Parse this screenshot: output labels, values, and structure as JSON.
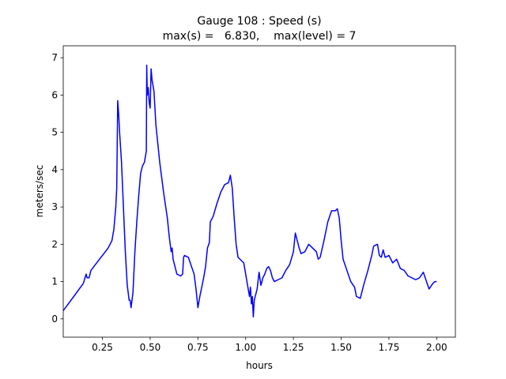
{
  "chart_data": {
    "type": "line",
    "title": "Gauge 108 : Speed (s)",
    "subtitle": "max(s) =   6.830,    max(level) = 7",
    "x_label": "hours",
    "y_label": "meters/sec",
    "color": "#0000ff",
    "xlim": [
      0.045,
      2.098
    ],
    "ylim": [
      -0.49,
      7.32
    ],
    "xticks": [
      0.25,
      {
        "value": 0.5,
        "label": "0.50"
      },
      0.75,
      {
        "value": 1.0,
        "label": "1.00"
      },
      1.25,
      {
        "value": 1.5,
        "label": "1.50"
      },
      1.75,
      {
        "value": 2.0,
        "label": "2.00"
      }
    ],
    "yticks": [
      0,
      1,
      2,
      3,
      4,
      5,
      6,
      7
    ],
    "x": [
      0.045,
      0.1,
      0.15,
      0.165,
      0.17,
      0.18,
      0.19,
      0.22,
      0.25,
      0.28,
      0.3,
      0.31,
      0.32,
      0.325,
      0.33,
      0.335,
      0.34,
      0.35,
      0.36,
      0.37,
      0.38,
      0.39,
      0.395,
      0.4,
      0.41,
      0.42,
      0.43,
      0.44,
      0.45,
      0.46,
      0.47,
      0.48,
      0.482,
      0.485,
      0.49,
      0.495,
      0.5,
      0.505,
      0.51,
      0.52,
      0.53,
      0.55,
      0.57,
      0.59,
      0.6,
      0.61,
      0.615,
      0.62,
      0.63,
      0.64,
      0.66,
      0.67,
      0.675,
      0.68,
      0.7,
      0.71,
      0.72,
      0.73,
      0.74,
      0.75,
      0.76,
      0.78,
      0.79,
      0.8,
      0.81,
      0.815,
      0.83,
      0.85,
      0.87,
      0.88,
      0.89,
      0.91,
      0.92,
      0.93,
      0.94,
      0.95,
      0.96,
      0.98,
      0.99,
      1.0,
      1.01,
      1.02,
      1.025,
      1.03,
      1.035,
      1.04,
      1.045,
      1.06,
      1.07,
      1.08,
      1.09,
      1.1,
      1.11,
      1.12,
      1.13,
      1.14,
      1.15,
      1.17,
      1.19,
      1.21,
      1.23,
      1.25,
      1.26,
      1.27,
      1.28,
      1.29,
      1.31,
      1.33,
      1.35,
      1.37,
      1.38,
      1.39,
      1.41,
      1.43,
      1.45,
      1.47,
      1.48,
      1.49,
      1.5,
      1.51,
      1.53,
      1.55,
      1.57,
      1.58,
      1.6,
      1.62,
      1.64,
      1.66,
      1.67,
      1.69,
      1.7,
      1.71,
      1.72,
      1.73,
      1.75,
      1.77,
      1.79,
      1.81,
      1.83,
      1.85,
      1.87,
      1.89,
      1.91,
      1.93,
      1.94,
      1.96,
      1.98,
      1.99,
      2.0
    ],
    "values": [
      0.22,
      0.6,
      0.95,
      1.2,
      1.1,
      1.1,
      1.3,
      1.5,
      1.7,
      1.9,
      2.1,
      2.4,
      3.0,
      3.5,
      5.85,
      5.5,
      5.0,
      4.2,
      3.0,
      1.8,
      0.9,
      0.5,
      0.5,
      0.3,
      0.7,
      1.8,
      2.6,
      3.3,
      3.9,
      4.1,
      4.2,
      4.5,
      6.8,
      6.0,
      6.2,
      5.8,
      5.65,
      6.7,
      6.4,
      6.1,
      5.2,
      4.2,
      3.4,
      2.7,
      2.2,
      1.8,
      1.9,
      1.6,
      1.4,
      1.2,
      1.15,
      1.2,
      1.65,
      1.7,
      1.65,
      1.5,
      1.35,
      1.2,
      0.8,
      0.3,
      0.6,
      1.1,
      1.4,
      1.9,
      2.05,
      2.6,
      2.75,
      3.1,
      3.4,
      3.5,
      3.6,
      3.65,
      3.85,
      3.5,
      2.7,
      2.0,
      1.65,
      1.55,
      1.5,
      1.2,
      0.9,
      0.6,
      0.85,
      0.4,
      0.6,
      0.05,
      0.5,
      0.8,
      1.25,
      0.9,
      1.1,
      1.2,
      1.35,
      1.4,
      1.3,
      1.1,
      1.0,
      1.05,
      1.1,
      1.3,
      1.45,
      1.8,
      2.3,
      2.1,
      1.9,
      1.75,
      1.8,
      2.0,
      1.9,
      1.8,
      1.6,
      1.65,
      2.1,
      2.6,
      2.9,
      2.9,
      2.95,
      2.7,
      2.1,
      1.6,
      1.3,
      1.0,
      0.85,
      0.6,
      0.55,
      0.95,
      1.3,
      1.7,
      1.95,
      2.0,
      1.7,
      1.65,
      1.85,
      1.65,
      1.7,
      1.5,
      1.6,
      1.35,
      1.3,
      1.15,
      1.1,
      1.05,
      1.1,
      1.25,
      1.1,
      0.8,
      0.95,
      1.0,
      1.0
    ]
  }
}
